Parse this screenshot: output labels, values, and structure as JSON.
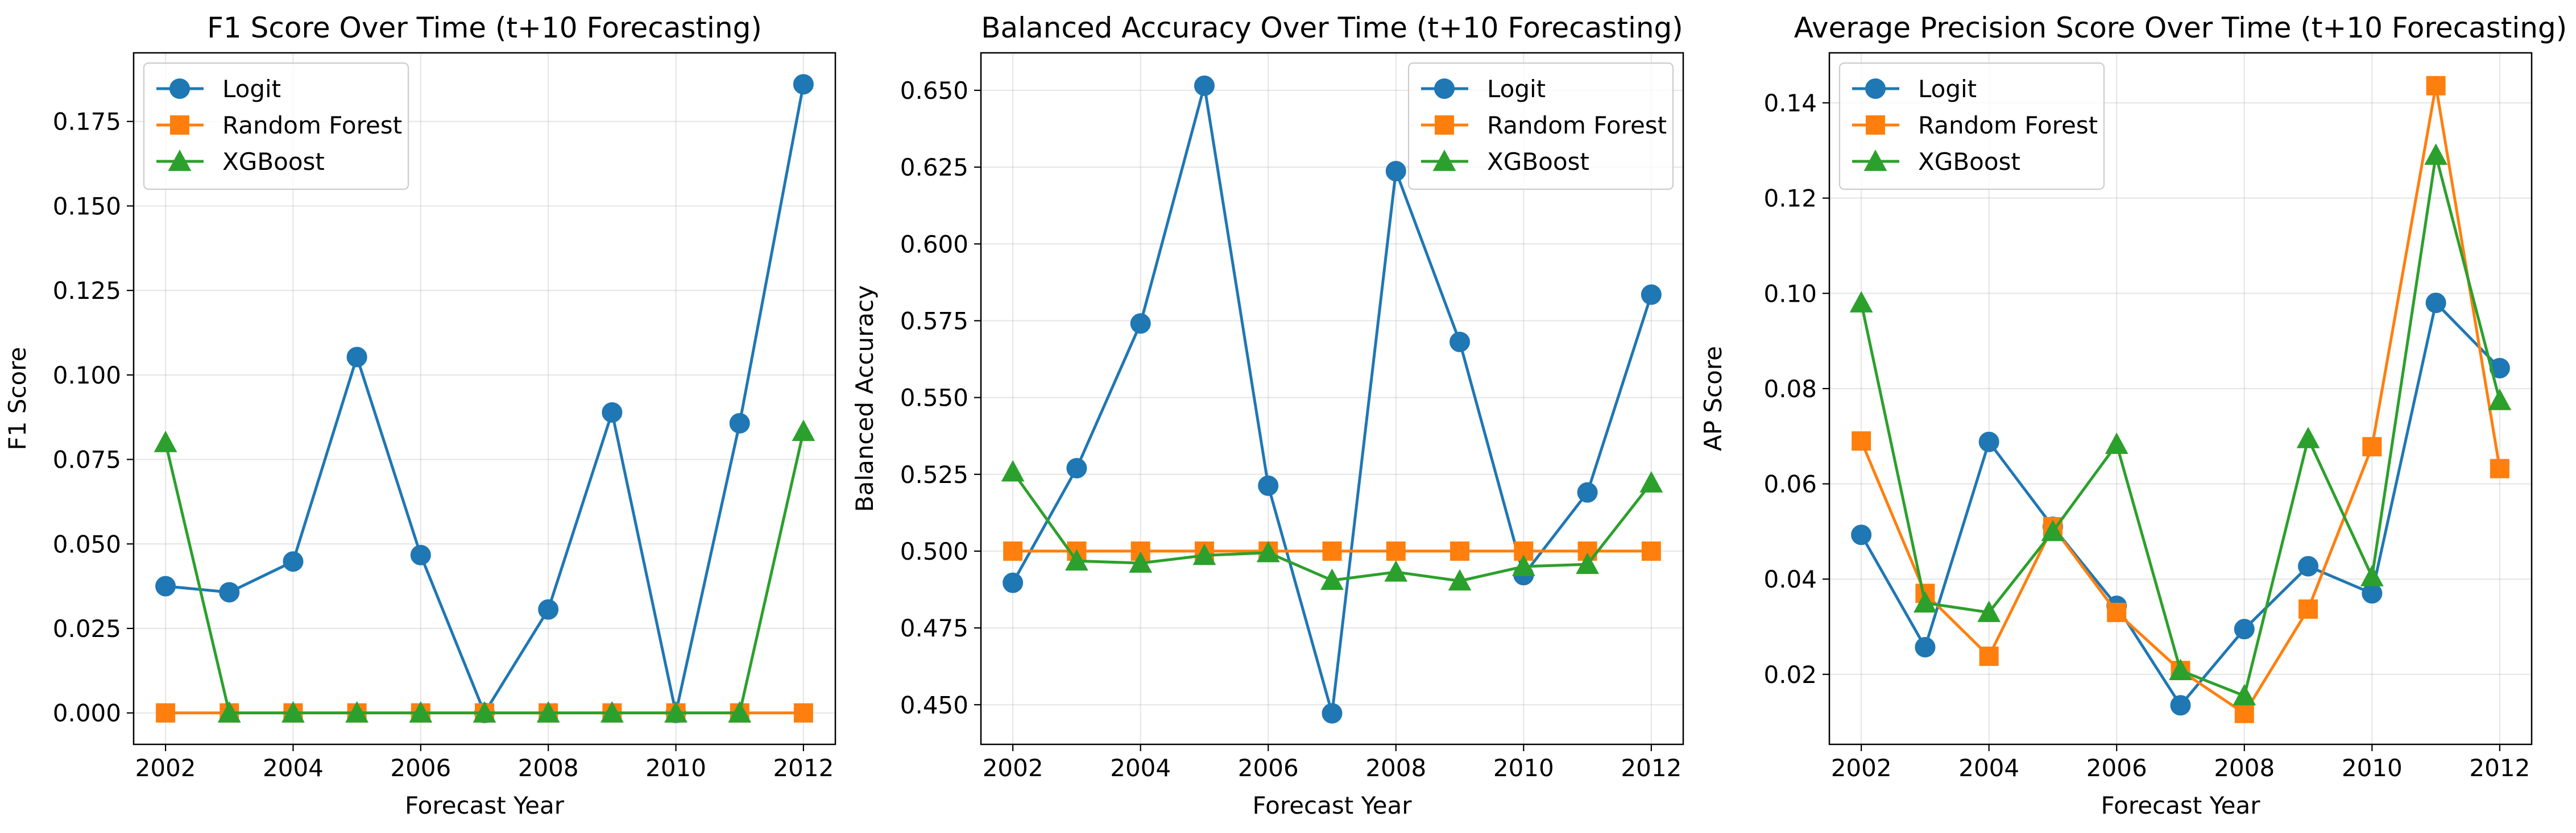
{
  "colors": {
    "logit": "#1f77b4",
    "random_forest": "#ff7f0e",
    "xgboost": "#2ca02c",
    "grid": "#b0b0b0",
    "axes": "#000000"
  },
  "chart_data": [
    {
      "type": "line",
      "title": "F1 Score Over Time (t+10 Forecasting)",
      "xlabel": "Forecast Year",
      "ylabel": "F1 Score",
      "x": [
        2002,
        2003,
        2004,
        2005,
        2006,
        2007,
        2008,
        2009,
        2010,
        2011,
        2012
      ],
      "xlim": [
        2001.5,
        2012.5
      ],
      "ylim": [
        -0.0093,
        0.1953
      ],
      "xticks": [
        2002,
        2004,
        2006,
        2008,
        2010,
        2012
      ],
      "yticks": [
        0.0,
        0.025,
        0.05,
        0.075,
        0.1,
        0.125,
        0.15,
        0.175
      ],
      "ytick_labels": [
        "0.000",
        "0.025",
        "0.050",
        "0.075",
        "0.100",
        "0.125",
        "0.150",
        "0.175"
      ],
      "grid": true,
      "legend_position": "top-left",
      "series": [
        {
          "name": "Logit",
          "marker": "circle",
          "values": [
            0.0375,
            0.0357,
            0.0448,
            0.1053,
            0.0467,
            0.0,
            0.0306,
            0.0889,
            0.0,
            0.0857,
            0.186
          ]
        },
        {
          "name": "Random Forest",
          "marker": "square",
          "values": [
            0.0,
            0.0,
            0.0,
            0.0,
            0.0,
            0.0,
            0.0,
            0.0,
            0.0,
            0.0,
            0.0
          ]
        },
        {
          "name": "XGBoost",
          "marker": "triangle",
          "values": [
            0.08,
            0.0,
            0.0,
            0.0,
            0.0,
            0.0,
            0.0,
            0.0,
            0.0,
            0.0,
            0.0833
          ]
        }
      ]
    },
    {
      "type": "line",
      "title": "Balanced Accuracy Over Time (t+10 Forecasting)",
      "xlabel": "Forecast Year",
      "ylabel": "Balanced Accuracy",
      "x": [
        2002,
        2003,
        2004,
        2005,
        2006,
        2007,
        2008,
        2009,
        2010,
        2011,
        2012
      ],
      "xlim": [
        2001.5,
        2012.5
      ],
      "ylim": [
        0.4371,
        0.6622
      ],
      "xticks": [
        2002,
        2004,
        2006,
        2008,
        2010,
        2012
      ],
      "yticks": [
        0.45,
        0.475,
        0.5,
        0.525,
        0.55,
        0.575,
        0.6,
        0.625,
        0.65
      ],
      "ytick_labels": [
        "0.450",
        "0.475",
        "0.500",
        "0.525",
        "0.550",
        "0.575",
        "0.600",
        "0.625",
        "0.650"
      ],
      "grid": true,
      "legend_position": "top-right",
      "series": [
        {
          "name": "Logit",
          "marker": "circle",
          "values": [
            0.4897,
            0.527,
            0.5741,
            0.6515,
            0.5213,
            0.4472,
            0.6237,
            0.5681,
            0.4922,
            0.5191,
            0.5835
          ]
        },
        {
          "name": "Random Forest",
          "marker": "square",
          "values": [
            0.5,
            0.5,
            0.5,
            0.5,
            0.5,
            0.5,
            0.5,
            0.5,
            0.5,
            0.5,
            0.5
          ]
        },
        {
          "name": "XGBoost",
          "marker": "triangle",
          "values": [
            0.5258,
            0.4968,
            0.4961,
            0.4986,
            0.4995,
            0.4905,
            0.4932,
            0.4903,
            0.495,
            0.4957,
            0.5222
          ]
        }
      ]
    },
    {
      "type": "line",
      "title": "Average Precision Score Over Time (t+10 Forecasting)",
      "xlabel": "Forecast Year",
      "ylabel": "AP Score",
      "x": [
        2002,
        2003,
        2004,
        2005,
        2006,
        2007,
        2008,
        2009,
        2010,
        2011,
        2012
      ],
      "xlim": [
        2001.5,
        2012.5
      ],
      "ylim": [
        0.0053,
        0.1505
      ],
      "xticks": [
        2002,
        2004,
        2006,
        2008,
        2010,
        2012
      ],
      "yticks": [
        0.02,
        0.04,
        0.06,
        0.08,
        0.1,
        0.12,
        0.14
      ],
      "ytick_labels": [
        "0.02",
        "0.04",
        "0.06",
        "0.08",
        "0.10",
        "0.12",
        "0.14"
      ],
      "grid": true,
      "legend_position": "top-left",
      "series": [
        {
          "name": "Logit",
          "marker": "circle",
          "values": [
            0.0493,
            0.0257,
            0.0688,
            0.051,
            0.0344,
            0.0135,
            0.0295,
            0.0427,
            0.037,
            0.098,
            0.0843
          ]
        },
        {
          "name": "Random Forest",
          "marker": "square",
          "values": [
            0.069,
            0.037,
            0.0238,
            0.051,
            0.033,
            0.0208,
            0.0118,
            0.0337,
            0.0678,
            0.1436,
            0.0632
          ]
        },
        {
          "name": "XGBoost",
          "marker": "triangle",
          "values": [
            0.098,
            0.035,
            0.033,
            0.05,
            0.0683,
            0.0208,
            0.0155,
            0.0695,
            0.0405,
            0.129,
            0.0775
          ]
        }
      ]
    }
  ]
}
